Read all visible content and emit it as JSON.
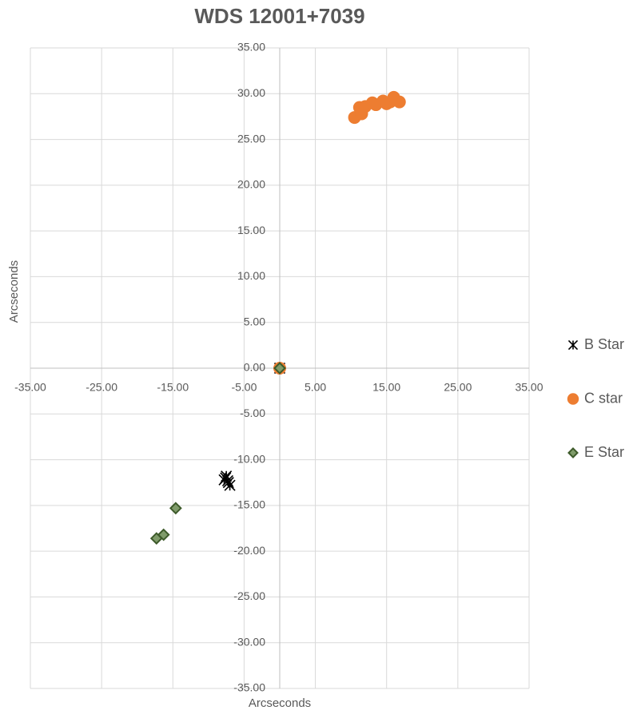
{
  "chart_data": {
    "type": "scatter",
    "title": "WDS 12001+7039",
    "x_label": "Arcseconds",
    "y_label": "Arcseconds",
    "xlim": [
      -35,
      35
    ],
    "ylim": [
      -35,
      35
    ],
    "xticks": [
      {
        "value": -35,
        "label": "-35.00"
      },
      {
        "value": -25,
        "label": "-25.00"
      },
      {
        "value": -15,
        "label": "-15.00"
      },
      {
        "value": -5,
        "label": "-5.00"
      },
      {
        "value": 5,
        "label": "5.00"
      },
      {
        "value": 15,
        "label": "15.00"
      },
      {
        "value": 25,
        "label": "25.00"
      },
      {
        "value": 35,
        "label": "35.00"
      }
    ],
    "yticks": [
      {
        "value": -35,
        "label": "-35.00"
      },
      {
        "value": -30,
        "label": "-30.00"
      },
      {
        "value": -25,
        "label": "-25.00"
      },
      {
        "value": -20,
        "label": "-20.00"
      },
      {
        "value": -15,
        "label": "-15.00"
      },
      {
        "value": -10,
        "label": "-10.00"
      },
      {
        "value": -5,
        "label": "-5.00"
      },
      {
        "value": 0,
        "label": "0.00"
      },
      {
        "value": 5,
        "label": "5.00"
      },
      {
        "value": 10,
        "label": "10.00"
      },
      {
        "value": 15,
        "label": "15.00"
      },
      {
        "value": 20,
        "label": "20.00"
      },
      {
        "value": 25,
        "label": "25.00"
      },
      {
        "value": 30,
        "label": "30.00"
      },
      {
        "value": 35,
        "label": "35.00"
      }
    ],
    "grid": true,
    "legend": "right",
    "series": [
      {
        "name": "B Star",
        "color": "#000000",
        "marker": "asterisk",
        "x": [
          0,
          -7.5,
          -7.2,
          -7.8,
          -7.0,
          -7.6,
          -7.3
        ],
        "values": [
          0,
          -11.8,
          -12.5,
          -12.2,
          -12.8,
          -12.0,
          -12.3
        ]
      },
      {
        "name": "C star",
        "color": "#ed7d31",
        "marker": "circle",
        "x": [
          0,
          10.5,
          11.2,
          11.5,
          12.0,
          13.0,
          13.5,
          14.5,
          15.0,
          15.5,
          16.0,
          16.8
        ],
        "values": [
          0,
          27.4,
          28.5,
          27.8,
          28.6,
          29.0,
          28.8,
          29.2,
          28.9,
          29.1,
          29.6,
          29.1
        ]
      },
      {
        "name": "E Star",
        "color": "#7f9b6a",
        "marker": "diamond",
        "x": [
          0,
          -14.6,
          -16.3,
          -17.3
        ],
        "values": [
          0,
          -15.3,
          -18.2,
          -18.6
        ]
      }
    ]
  }
}
